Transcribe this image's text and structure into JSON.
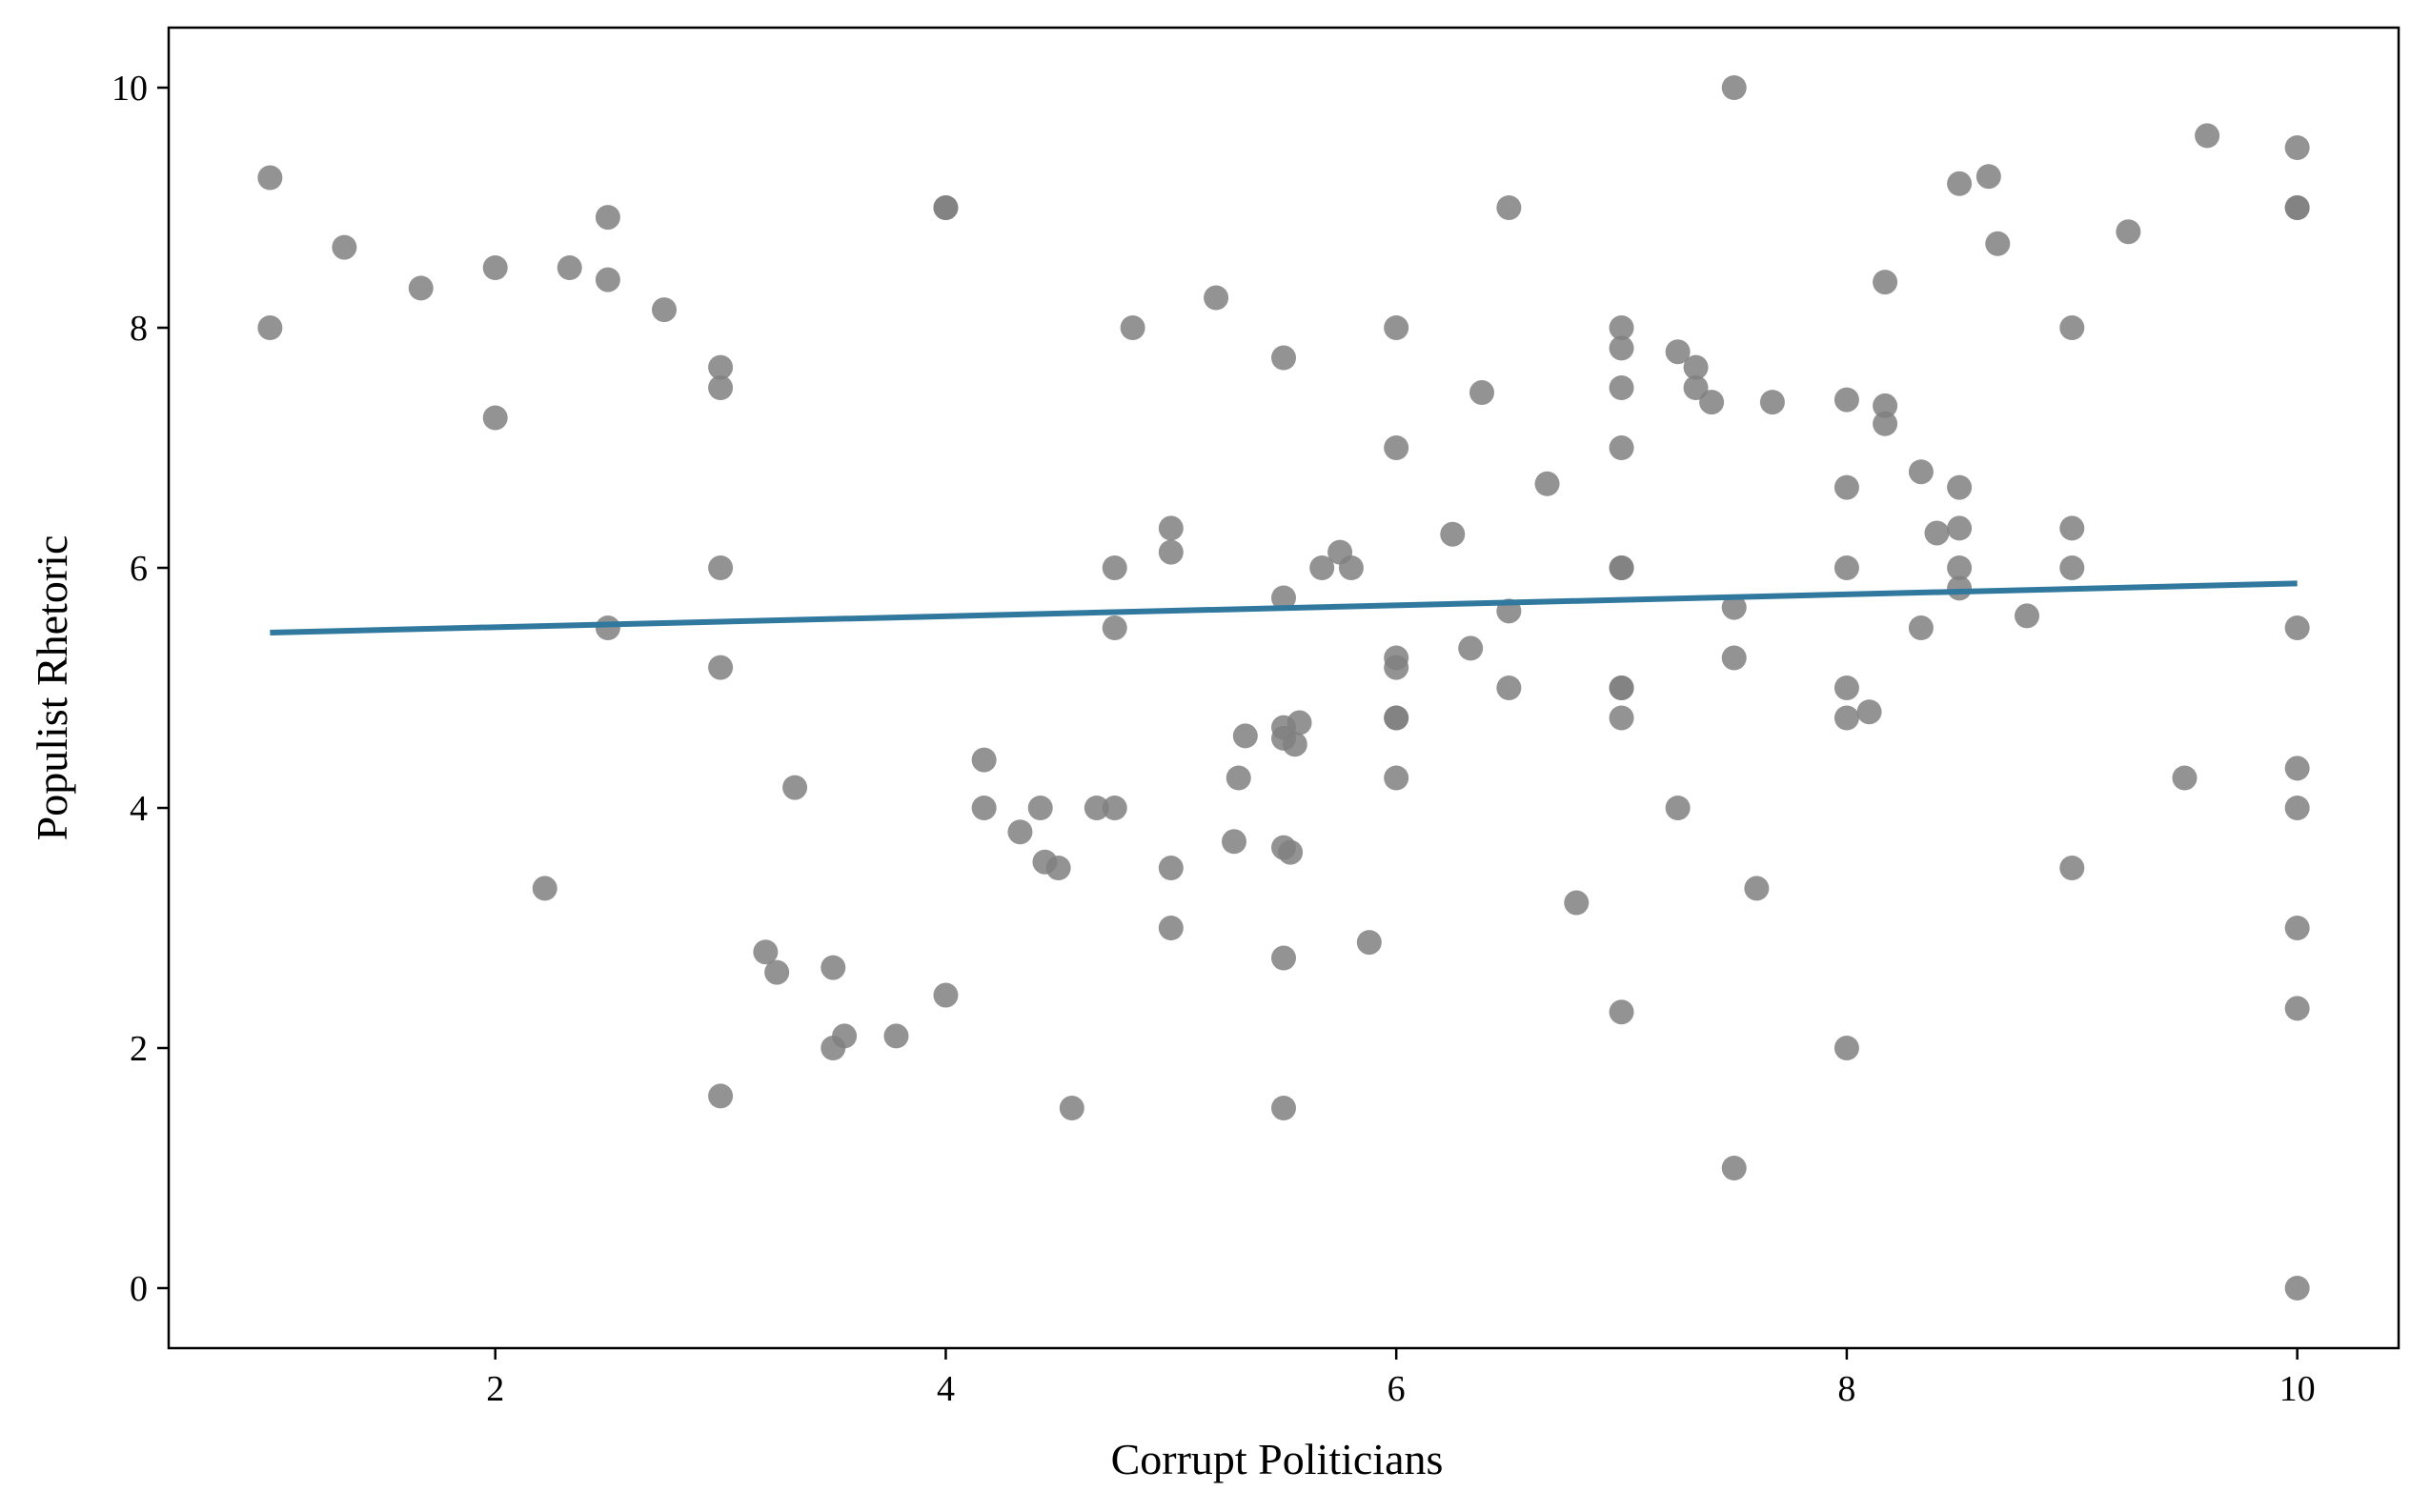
{
  "chart_data": {
    "type": "scatter",
    "xlabel": "Corrupt Politicians",
    "ylabel": "Populist Rhetoric",
    "xlim": [
      0.55,
      10.45
    ],
    "ylim": [
      -0.5,
      10.5
    ],
    "xticks": [
      2,
      4,
      6,
      8,
      10
    ],
    "yticks": [
      0,
      2,
      4,
      6,
      8,
      10
    ],
    "grid": false,
    "legend": "none",
    "point_color": "#808080",
    "line_color": "#31789e",
    "regression_line": {
      "x": [
        1,
        10
      ],
      "y": [
        5.46,
        5.87
      ]
    },
    "points": [
      [
        1,
        9.25
      ],
      [
        1,
        8
      ],
      [
        1.33,
        8.67
      ],
      [
        1.67,
        8.33
      ],
      [
        2,
        8.5
      ],
      [
        2,
        7.25
      ],
      [
        2.22,
        3.33
      ],
      [
        2.33,
        8.5
      ],
      [
        2.5,
        8.92
      ],
      [
        2.5,
        8.4
      ],
      [
        2.5,
        5.5
      ],
      [
        2.75,
        8.15
      ],
      [
        3,
        7.67
      ],
      [
        3,
        7.5
      ],
      [
        3,
        6
      ],
      [
        3,
        5.17
      ],
      [
        3,
        1.6
      ],
      [
        3.2,
        2.8
      ],
      [
        3.25,
        2.63
      ],
      [
        3.33,
        4.17
      ],
      [
        3.5,
        2.67
      ],
      [
        3.5,
        2
      ],
      [
        3.55,
        2.1
      ],
      [
        3.78,
        2.1
      ],
      [
        4,
        9
      ],
      [
        4,
        9
      ],
      [
        4,
        2.44
      ],
      [
        4.17,
        4.4
      ],
      [
        4.17,
        4
      ],
      [
        4.33,
        3.8
      ],
      [
        4.42,
        4
      ],
      [
        4.44,
        3.55
      ],
      [
        4.5,
        3.5
      ],
      [
        4.56,
        1.5
      ],
      [
        4.67,
        4
      ],
      [
        4.75,
        6
      ],
      [
        4.75,
        5.5
      ],
      [
        4.75,
        4
      ],
      [
        4.83,
        8
      ],
      [
        5,
        6.33
      ],
      [
        5,
        6.13
      ],
      [
        5,
        3.5
      ],
      [
        5,
        3
      ],
      [
        5.2,
        8.25
      ],
      [
        5.28,
        3.72
      ],
      [
        5.3,
        4.25
      ],
      [
        5.33,
        4.6
      ],
      [
        5.5,
        7.75
      ],
      [
        5.5,
        5.75
      ],
      [
        5.5,
        4.67
      ],
      [
        5.5,
        4.58
      ],
      [
        5.5,
        3.67
      ],
      [
        5.5,
        2.75
      ],
      [
        5.5,
        1.5
      ],
      [
        5.53,
        3.63
      ],
      [
        5.55,
        4.53
      ],
      [
        5.57,
        4.71
      ],
      [
        5.67,
        6
      ],
      [
        5.75,
        6.13
      ],
      [
        5.8,
        6
      ],
      [
        5.88,
        2.88
      ],
      [
        6,
        8
      ],
      [
        6,
        7
      ],
      [
        6,
        5.25
      ],
      [
        6,
        5.17
      ],
      [
        6,
        4.75
      ],
      [
        6,
        4.75
      ],
      [
        6,
        4.25
      ],
      [
        6.25,
        6.28
      ],
      [
        6.33,
        5.33
      ],
      [
        6.38,
        7.46
      ],
      [
        6.5,
        9
      ],
      [
        6.5,
        5.64
      ],
      [
        6.5,
        5
      ],
      [
        6.67,
        6.7
      ],
      [
        6.8,
        3.21
      ],
      [
        7,
        8
      ],
      [
        7,
        7.83
      ],
      [
        7,
        7.5
      ],
      [
        7,
        7
      ],
      [
        7,
        6
      ],
      [
        7,
        6
      ],
      [
        7,
        5
      ],
      [
        7,
        5
      ],
      [
        7,
        4.75
      ],
      [
        7,
        2.3
      ],
      [
        7.25,
        7.8
      ],
      [
        7.25,
        4
      ],
      [
        7.33,
        7.67
      ],
      [
        7.33,
        7.5
      ],
      [
        7.4,
        7.38
      ],
      [
        7.5,
        10
      ],
      [
        7.5,
        5.67
      ],
      [
        7.5,
        5.25
      ],
      [
        7.5,
        1
      ],
      [
        7.6,
        3.33
      ],
      [
        7.67,
        7.38
      ],
      [
        8,
        7.4
      ],
      [
        8,
        6.67
      ],
      [
        8,
        6
      ],
      [
        8,
        5
      ],
      [
        8,
        4.75
      ],
      [
        8,
        2
      ],
      [
        8.1,
        4.8
      ],
      [
        8.17,
        8.38
      ],
      [
        8.17,
        7.35
      ],
      [
        8.17,
        7.2
      ],
      [
        8.33,
        6.8
      ],
      [
        8.33,
        5.5
      ],
      [
        8.4,
        6.29
      ],
      [
        8.5,
        9.2
      ],
      [
        8.5,
        6.67
      ],
      [
        8.5,
        6.33
      ],
      [
        8.5,
        6
      ],
      [
        8.5,
        5.83
      ],
      [
        8.63,
        9.26
      ],
      [
        8.67,
        8.7
      ],
      [
        8.8,
        5.6
      ],
      [
        9,
        8
      ],
      [
        9,
        6.33
      ],
      [
        9,
        6
      ],
      [
        9,
        3.5
      ],
      [
        9.25,
        8.8
      ],
      [
        9.5,
        4.25
      ],
      [
        9.6,
        9.6
      ],
      [
        10,
        9.5
      ],
      [
        10,
        9
      ],
      [
        10,
        9
      ],
      [
        10,
        5.5
      ],
      [
        10,
        4.33
      ],
      [
        10,
        4
      ],
      [
        10,
        3
      ],
      [
        10,
        2.33
      ],
      [
        10,
        0
      ]
    ]
  }
}
